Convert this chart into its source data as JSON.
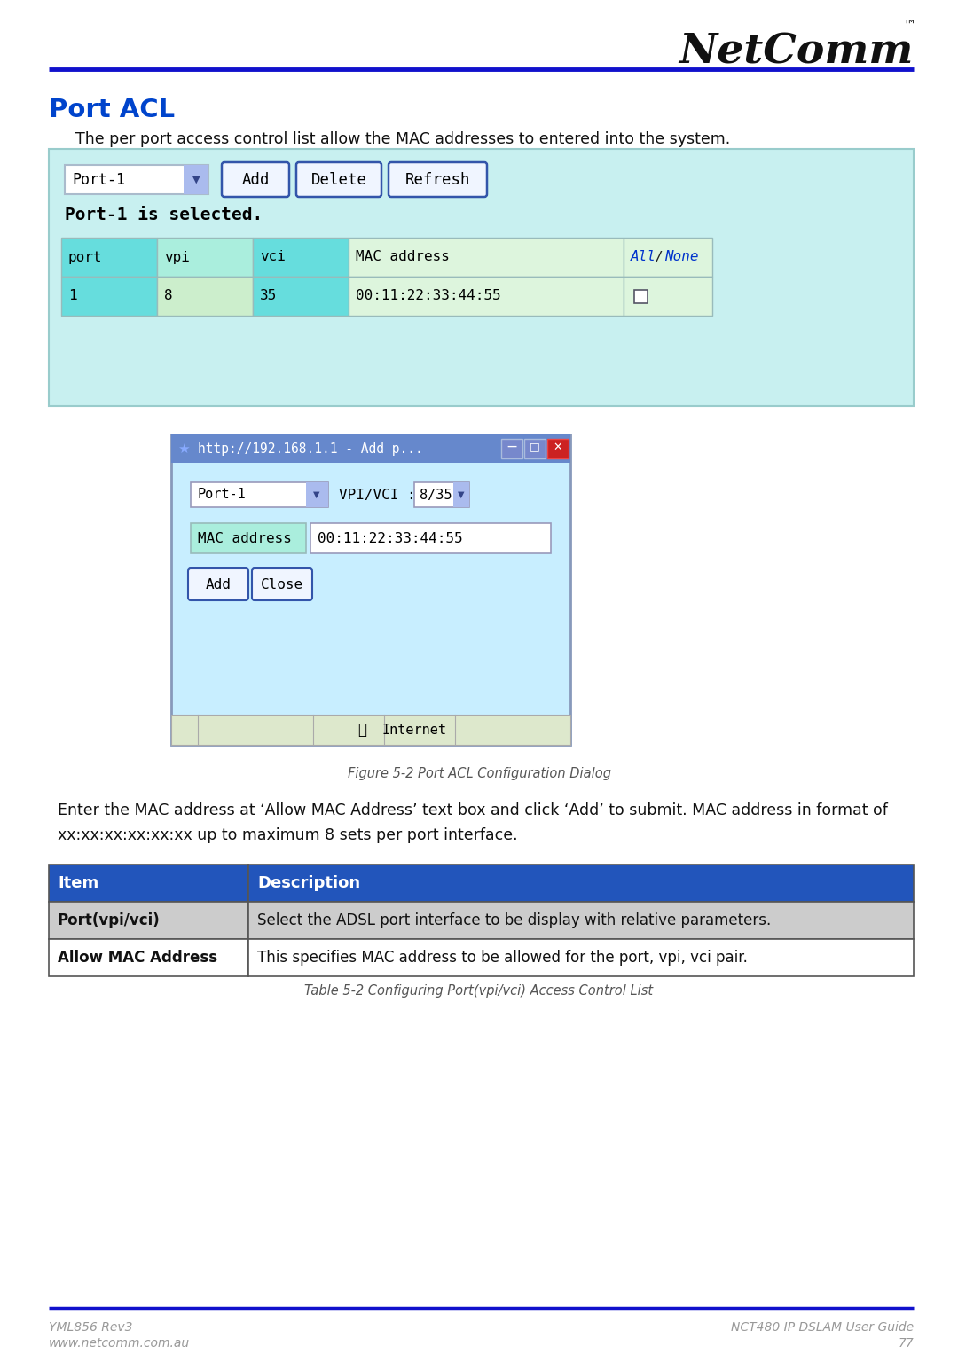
{
  "page_bg": "#ffffff",
  "logo_text": "NetComm",
  "logo_tm": "™",
  "header_line_color": "#1111cc",
  "title": "Port ACL",
  "title_color": "#0044cc",
  "intro_text": "The per port access control list allow the MAC addresses to entered into the system.",
  "panel_bg": "#c8f0f0",
  "panel_border": "#88cccc",
  "dropdown_text": "Port-1",
  "btn_add": "Add",
  "btn_delete": "Delete",
  "btn_refresh": "Refresh",
  "selected_text": "Port-1 is selected.",
  "table_header_cols": [
    "port",
    "vpi",
    "vci",
    "MAC address",
    "All / None"
  ],
  "table_header_bg": [
    "#66dddd",
    "#aaeedd",
    "#66dddd",
    "#ddf5dd",
    "#ddf5dd"
  ],
  "table_row_data": [
    "1",
    "8",
    "35",
    "00:11:22:33:44:55",
    ""
  ],
  "table_row_bg": [
    "#66dddd",
    "#cceecc",
    "#66dddd",
    "#ddf5dd",
    "#ddf5dd"
  ],
  "dialog_title": "http://192.168.1.1 - Add p...",
  "dialog_bg": "#c8eeff",
  "dialog_titlebar_bg": "#6688cc",
  "dialog_titlebar_fg": "#ffffff",
  "dialog_port_text": "Port-1",
  "dialog_vpivci_label": "VPI/VCI :",
  "dialog_vpivci_val": "8/35",
  "dialog_mac_label": "MAC address",
  "dialog_mac_val": "00:11:22:33:44:55",
  "dialog_btn_add": "Add",
  "dialog_btn_close": "Close",
  "dialog_statusbar_text": "Internet",
  "figure_caption": "Figure 5-2 Port ACL Configuration Dialog",
  "body_line1": "Enter the MAC address at ‘Allow MAC Address’ text box and click ‘Add’ to submit. MAC address in format of",
  "body_line2": "xx:xx:xx:xx:xx:xx up to maximum 8 sets per port interface.",
  "desc_table_header": [
    "Item",
    "Description"
  ],
  "desc_table_header_bg": "#2255bb",
  "desc_table_header_fg": "#ffffff",
  "desc_rows": [
    [
      "Port(vpi/vci)",
      "Select the ADSL port interface to be display with relative parameters."
    ],
    [
      "Allow MAC Address",
      "This specifies MAC address to be allowed for the port, vpi, vci pair."
    ]
  ],
  "desc_row_bgs": [
    "#cccccc",
    "#ffffff"
  ],
  "table_caption": "Table 5-2 Configuring Port(vpi/vci) Access Control List",
  "footer_left1": "YML856 Rev3",
  "footer_left2": "www.netcomm.com.au",
  "footer_right1": "NCT480 IP DSLAM User Guide",
  "footer_right2": "77",
  "footer_line_color": "#1111cc",
  "footer_text_color": "#999999"
}
